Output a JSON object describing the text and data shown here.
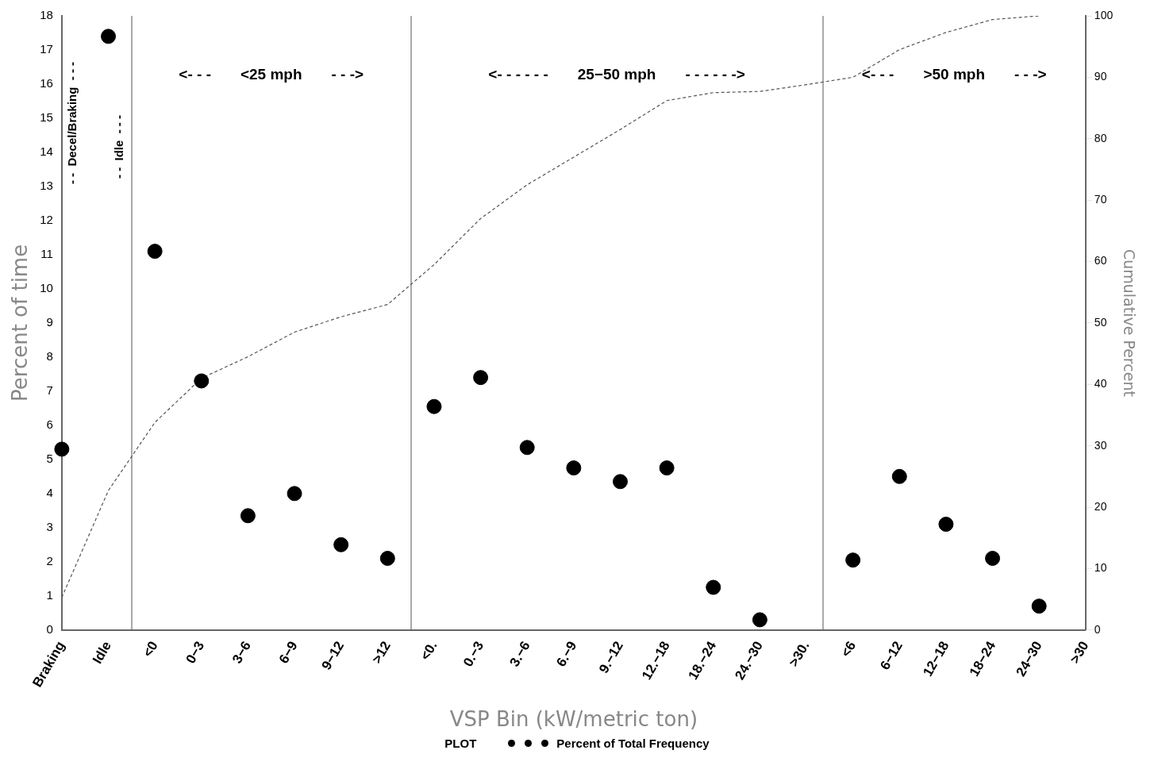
{
  "chart_data": {
    "type": "scatter",
    "xlabel": "VSP Bin (kW/metric ton)",
    "ylabel": "Percent of time",
    "y2label": "Cumulative Percent",
    "legend_title": "PLOT",
    "categories": [
      "Braking",
      "Idle",
      "<0",
      "0−3",
      "3−6",
      "6−9",
      "9−12",
      ">12",
      "<0.",
      "0.−3",
      "3.−6",
      "6.−9",
      "9.−12",
      "12.−18",
      "18.−24",
      "24.−30",
      ">30.",
      "<6",
      "6−12",
      "12−18",
      "18−24",
      "24−30",
      ">30"
    ],
    "series": [
      {
        "name": "Percent of Total Frequency",
        "color": "#000000",
        "marker": "circle",
        "values": [
          5.3,
          17.4,
          11.1,
          7.3,
          3.35,
          4.0,
          2.5,
          2.1,
          6.55,
          7.4,
          5.35,
          4.75,
          4.35,
          4.75,
          1.25,
          0.3,
          null,
          2.05,
          4.5,
          3.1,
          2.1,
          0.7,
          null
        ]
      },
      {
        "type": "line",
        "axis": "y2",
        "color": "#555555",
        "line_style": "dashed",
        "marker": "none",
        "values": [
          5.3,
          22.7,
          33.8,
          41,
          44.5,
          48.5,
          51,
          53,
          59.5,
          67,
          72.5,
          77,
          81.5,
          86.2,
          87.5,
          87.7,
          88.8,
          90,
          94.5,
          97.3,
          99.4,
          100,
          null
        ]
      }
    ],
    "ylim": [
      0,
      18
    ],
    "yticks": [
      0,
      1,
      2,
      3,
      4,
      5,
      6,
      7,
      8,
      9,
      10,
      11,
      12,
      13,
      14,
      15,
      16,
      17,
      18
    ],
    "y2lim": [
      0,
      100
    ],
    "y2ticks": [
      0,
      10,
      20,
      30,
      40,
      50,
      60,
      70,
      80,
      90,
      100
    ],
    "annotations": [
      "- -  Decel/Braking  - - -",
      "- -  Idle  - - -",
      "<- - -       <25 mph       - - ->",
      "<- - - - - -       25−50 mph       - - - - - ->",
      "<- - -       >50 mph       - - ->"
    ],
    "grid": false,
    "legend": "bottom"
  }
}
